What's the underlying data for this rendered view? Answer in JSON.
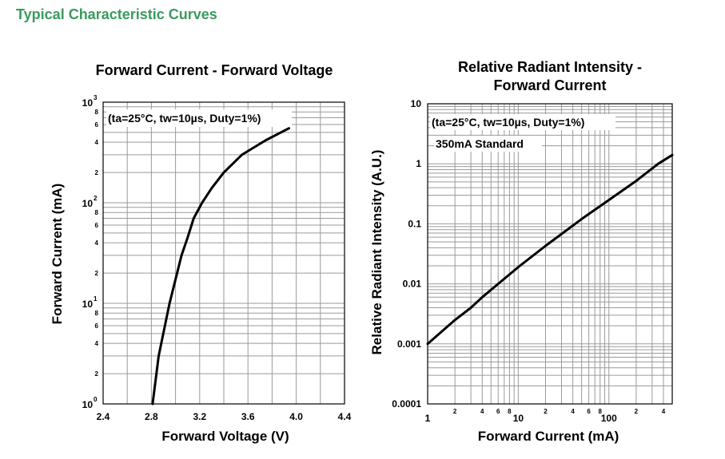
{
  "section_title": "Typical Characteristic Curves",
  "chart_data": [
    {
      "type": "line",
      "title": "Forward Current - Forward Voltage",
      "xlabel": "Forward Voltage (V)",
      "ylabel": "Forward Current (mA)",
      "xscale": "linear",
      "yscale": "log",
      "xlim": [
        2.4,
        4.4
      ],
      "ylim": [
        1,
        1000
      ],
      "grid": true,
      "annotation": "(ta=25°C, tw=10µs, Duty=1%)",
      "x_ticks": [
        "2.4",
        "2.8",
        "3.2",
        "3.6",
        "4.0",
        "4.4"
      ],
      "y_ticks": [
        {
          "value": 1,
          "base": "10",
          "exp": "0"
        },
        {
          "value": 10,
          "base": "10",
          "exp": "1"
        },
        {
          "value": 100,
          "base": "10",
          "exp": "2"
        },
        {
          "value": 1000,
          "base": "10",
          "exp": "3"
        }
      ],
      "y_minor_ticks": [
        {
          "value": 2,
          "label": "2"
        },
        {
          "value": 4,
          "label": "4"
        },
        {
          "value": 6,
          "label": "6"
        },
        {
          "value": 8,
          "label": "8"
        },
        {
          "value": 20,
          "label": "2"
        },
        {
          "value": 40,
          "label": "4"
        },
        {
          "value": 60,
          "label": "6"
        },
        {
          "value": 80,
          "label": "8"
        },
        {
          "value": 200,
          "label": "2"
        },
        {
          "value": 400,
          "label": "4"
        },
        {
          "value": 600,
          "label": "6"
        },
        {
          "value": 800,
          "label": "8"
        }
      ],
      "series": [
        {
          "x": [
            2.81,
            2.86,
            2.95,
            3.05,
            3.1,
            3.15,
            3.22,
            3.3,
            3.4,
            3.55,
            3.75,
            3.94
          ],
          "y": [
            1,
            3,
            10,
            30,
            45,
            70,
            100,
            140,
            200,
            300,
            420,
            550
          ]
        }
      ]
    },
    {
      "type": "line",
      "title": "Relative Radiant Intensity -",
      "title_line2": "Forward Current",
      "xlabel": "Forward Current (mA)",
      "ylabel": "Relative Radiant Intensity (A.U.)",
      "xscale": "log",
      "yscale": "log",
      "xlim": [
        1,
        500
      ],
      "ylim": [
        0.0001,
        10
      ],
      "grid": true,
      "annotation": "(ta=25°C, tw=10µs, Duty=1%)",
      "annotation2": "350mA Standard",
      "x_ticks": [
        {
          "value": 1,
          "label": "1"
        },
        {
          "value": 10,
          "label": "10"
        },
        {
          "value": 100,
          "label": "100"
        }
      ],
      "x_minor_ticks": [
        {
          "value": 2,
          "label": "2"
        },
        {
          "value": 4,
          "label": "4"
        },
        {
          "value": 6,
          "label": "6"
        },
        {
          "value": 8,
          "label": "8"
        },
        {
          "value": 20,
          "label": "2"
        },
        {
          "value": 40,
          "label": "4"
        },
        {
          "value": 60,
          "label": "6"
        },
        {
          "value": 80,
          "label": "8"
        },
        {
          "value": 200,
          "label": "2"
        },
        {
          "value": 400,
          "label": "4"
        }
      ],
      "y_ticks": [
        {
          "value": 0.0001,
          "label": "0.0001"
        },
        {
          "value": 0.001,
          "label": "0.001"
        },
        {
          "value": 0.01,
          "label": "0.01"
        },
        {
          "value": 0.1,
          "label": "0.1"
        },
        {
          "value": 1,
          "label": "1"
        },
        {
          "value": 10,
          "label": "10"
        }
      ],
      "series": [
        {
          "x": [
            1,
            2,
            3,
            4,
            6,
            10,
            20,
            50,
            100,
            200,
            350,
            500
          ],
          "y": [
            0.001,
            0.0025,
            0.004,
            0.006,
            0.01,
            0.019,
            0.043,
            0.12,
            0.25,
            0.52,
            1.0,
            1.4
          ]
        }
      ]
    }
  ]
}
